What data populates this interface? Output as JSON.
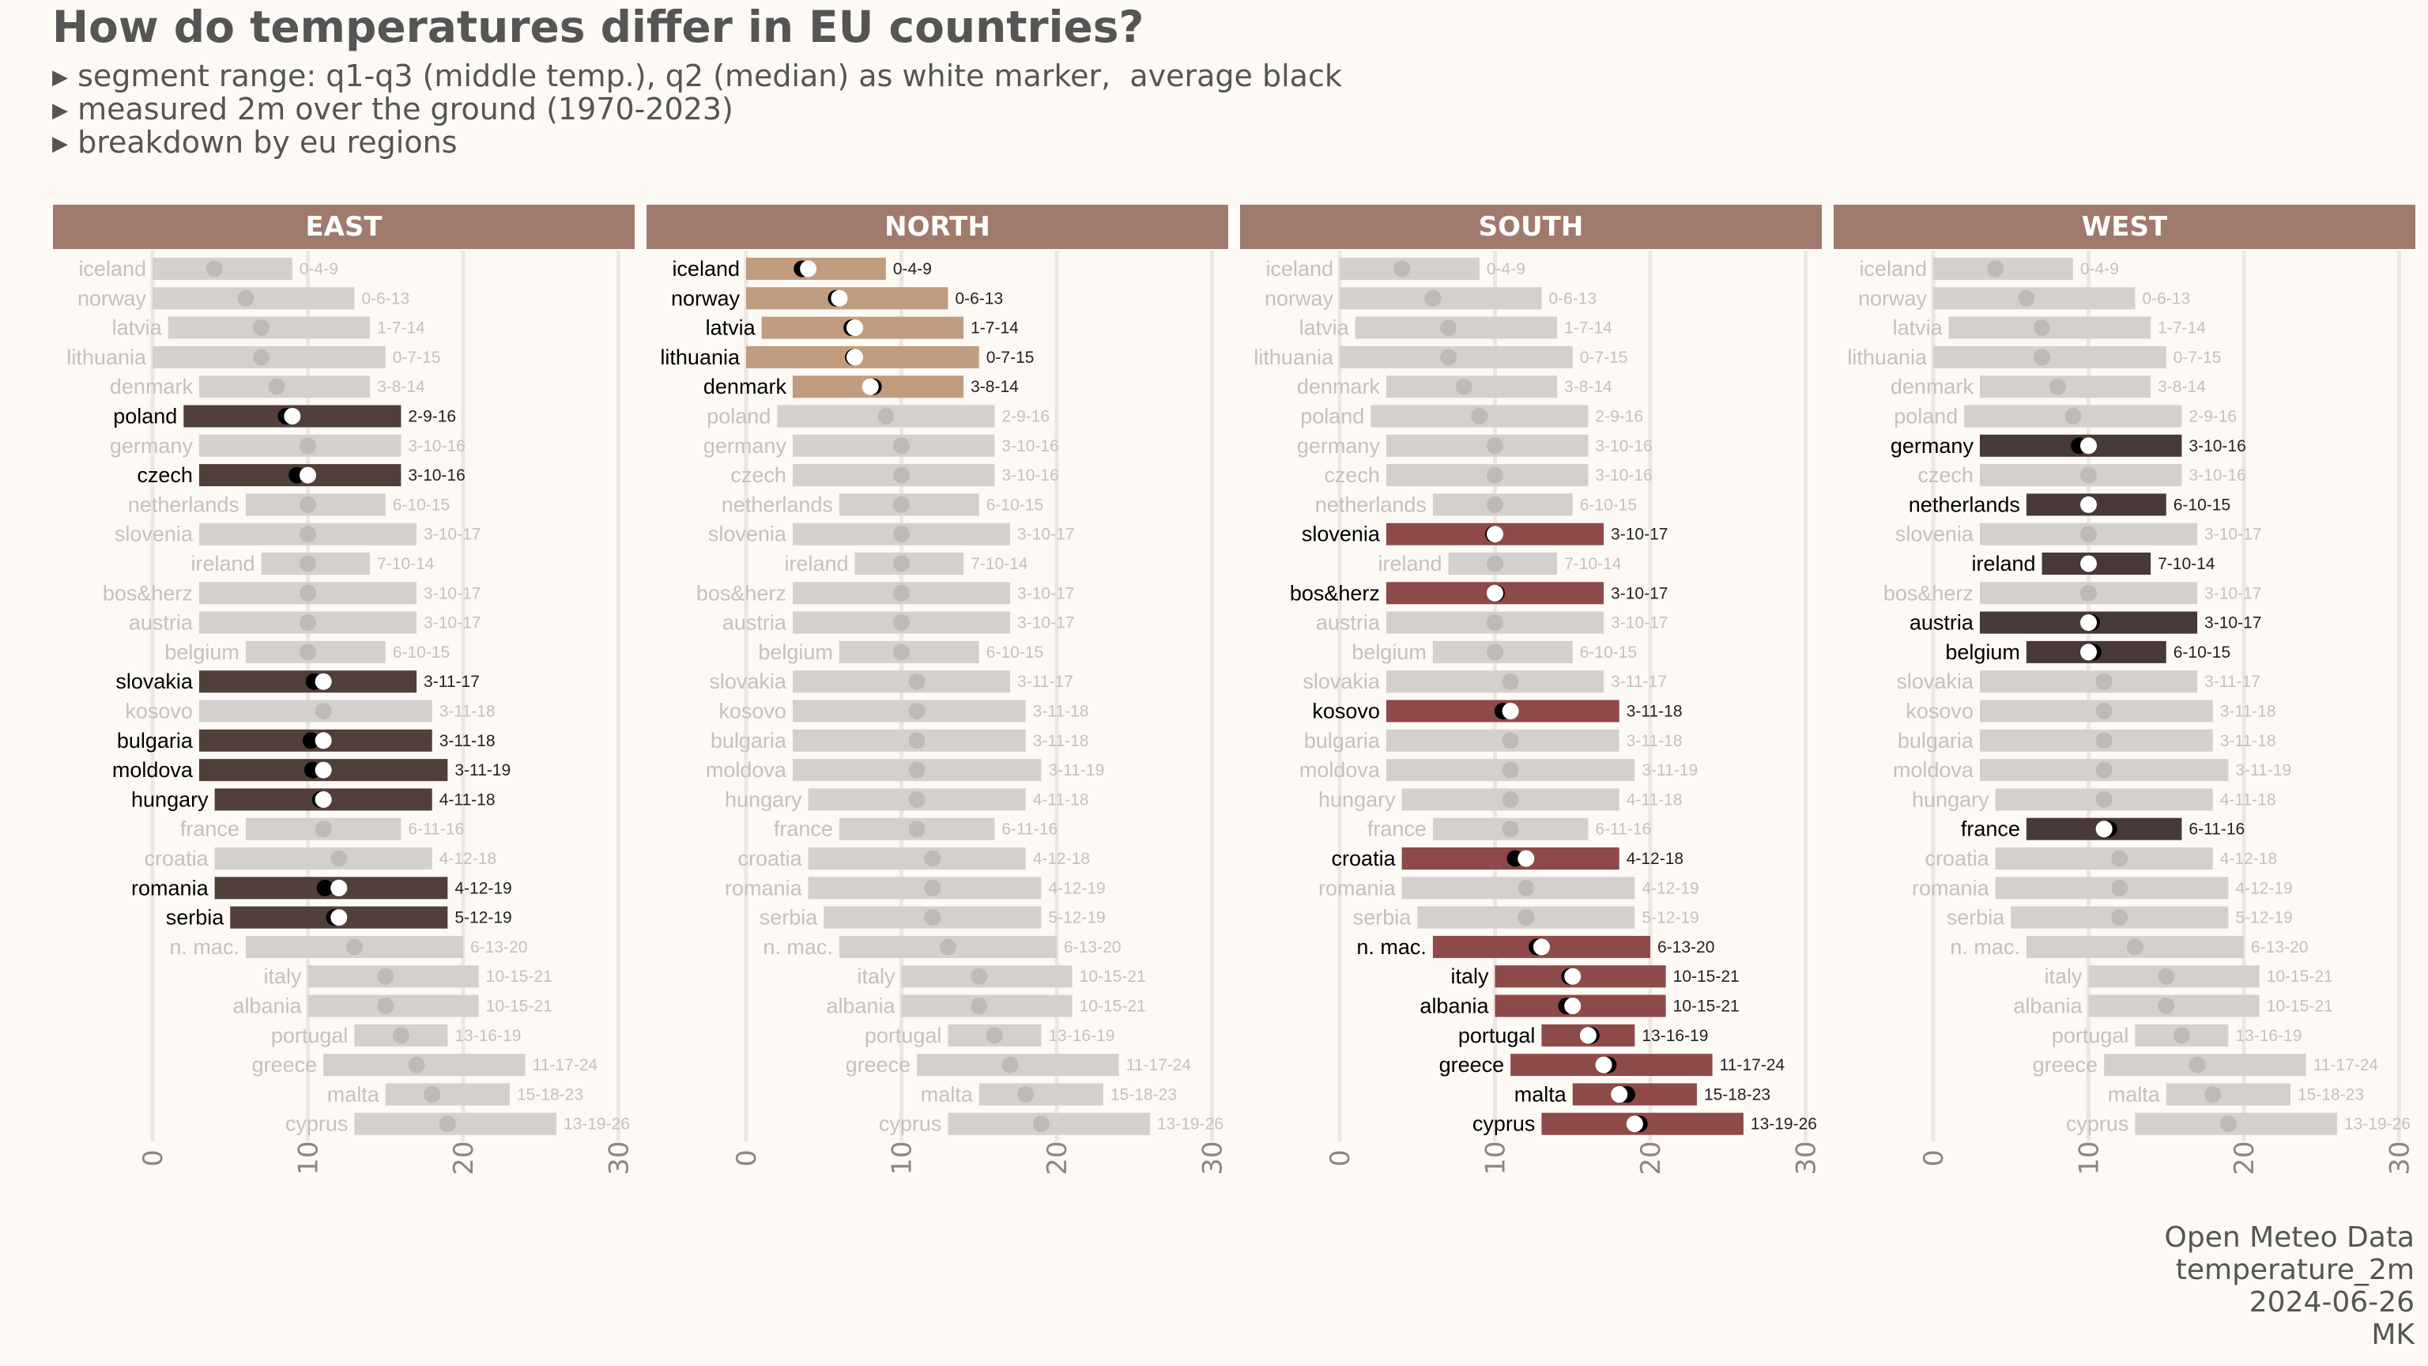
{
  "title": "How do temperatures differ in EU countries?",
  "subtitle": [
    "segment range: q1-q3 (middle temp.), q2 (median) as white marker,  average black",
    "measured 2m over the ground (1970-2023)",
    "breakdown by eu regions"
  ],
  "caption": [
    "Open Meteo Data",
    "temperature_2m",
    "2024-06-26",
    "MK"
  ],
  "colors": {
    "background": "#fdf9f5",
    "strip": "#a07a6c",
    "strip_text": "#ffffff",
    "inactive_bar": "#d3d0cd",
    "inactive_text": "#c4c1be",
    "grid": "#ede7e1",
    "east": "#513f3a",
    "north": "#c29c7f",
    "south": "#8d4a48",
    "west": "#463937"
  },
  "chart_data": {
    "type": "bar",
    "orientation": "horizontal",
    "facets": [
      "EAST",
      "NORTH",
      "SOUTH",
      "WEST"
    ],
    "x_ticks": [
      0,
      10,
      20,
      30
    ],
    "xlim": [
      0,
      30
    ],
    "countries": [
      {
        "name": "iceland",
        "q1": 0,
        "median": 4,
        "q3": 9,
        "mean": 3.6,
        "label": "0-4-9",
        "region": "NORTH"
      },
      {
        "name": "norway",
        "q1": 0,
        "median": 6,
        "q3": 13,
        "mean": 5.8,
        "label": "0-6-13",
        "region": "NORTH"
      },
      {
        "name": "latvia",
        "q1": 1,
        "median": 7,
        "q3": 14,
        "mean": 6.8,
        "label": "1-7-14",
        "region": "NORTH"
      },
      {
        "name": "lithuania",
        "q1": 0,
        "median": 7,
        "q3": 15,
        "mean": 6.9,
        "label": "0-7-15",
        "region": "NORTH"
      },
      {
        "name": "denmark",
        "q1": 3,
        "median": 8,
        "q3": 14,
        "mean": 8.2,
        "label": "3-8-14",
        "region": "NORTH"
      },
      {
        "name": "poland",
        "q1": 2,
        "median": 9,
        "q3": 16,
        "mean": 8.6,
        "label": "2-9-16",
        "region": "EAST"
      },
      {
        "name": "germany",
        "q1": 3,
        "median": 10,
        "q3": 16,
        "mean": 9.4,
        "label": "3-10-16",
        "region": "WEST"
      },
      {
        "name": "czech",
        "q1": 3,
        "median": 10,
        "q3": 16,
        "mean": 9.3,
        "label": "3-10-16",
        "region": "EAST"
      },
      {
        "name": "netherlands",
        "q1": 6,
        "median": 10,
        "q3": 15,
        "mean": 10.0,
        "label": "6-10-15",
        "region": "WEST"
      },
      {
        "name": "slovenia",
        "q1": 3,
        "median": 10,
        "q3": 17,
        "mean": 9.9,
        "label": "3-10-17",
        "region": "SOUTH"
      },
      {
        "name": "ireland",
        "q1": 7,
        "median": 10,
        "q3": 14,
        "mean": 10.0,
        "label": "7-10-14",
        "region": "WEST"
      },
      {
        "name": "bos&herz",
        "q1": 3,
        "median": 10,
        "q3": 17,
        "mean": 10.1,
        "label": "3-10-17",
        "region": "SOUTH"
      },
      {
        "name": "austria",
        "q1": 3,
        "median": 10,
        "q3": 17,
        "mean": 10.2,
        "label": "3-10-17",
        "region": "WEST"
      },
      {
        "name": "belgium",
        "q1": 6,
        "median": 10,
        "q3": 15,
        "mean": 10.3,
        "label": "6-10-15",
        "region": "WEST"
      },
      {
        "name": "slovakia",
        "q1": 3,
        "median": 11,
        "q3": 17,
        "mean": 10.4,
        "label": "3-11-17",
        "region": "EAST"
      },
      {
        "name": "kosovo",
        "q1": 3,
        "median": 11,
        "q3": 18,
        "mean": 10.5,
        "label": "3-11-18",
        "region": "SOUTH"
      },
      {
        "name": "bulgaria",
        "q1": 3,
        "median": 11,
        "q3": 18,
        "mean": 10.2,
        "label": "3-11-18",
        "region": "EAST"
      },
      {
        "name": "moldova",
        "q1": 3,
        "median": 11,
        "q3": 19,
        "mean": 10.3,
        "label": "3-11-19",
        "region": "EAST"
      },
      {
        "name": "hungary",
        "q1": 4,
        "median": 11,
        "q3": 18,
        "mean": 10.8,
        "label": "4-11-18",
        "region": "EAST"
      },
      {
        "name": "france",
        "q1": 6,
        "median": 11,
        "q3": 16,
        "mean": 11.3,
        "label": "6-11-16",
        "region": "WEST"
      },
      {
        "name": "croatia",
        "q1": 4,
        "median": 12,
        "q3": 18,
        "mean": 11.3,
        "label": "4-12-18",
        "region": "SOUTH"
      },
      {
        "name": "romania",
        "q1": 4,
        "median": 12,
        "q3": 19,
        "mean": 11.1,
        "label": "4-12-19",
        "region": "EAST"
      },
      {
        "name": "serbia",
        "q1": 5,
        "median": 12,
        "q3": 19,
        "mean": 11.7,
        "label": "5-12-19",
        "region": "EAST"
      },
      {
        "name": "n. mac.",
        "q1": 6,
        "median": 13,
        "q3": 20,
        "mean": 12.7,
        "label": "6-13-20",
        "region": "SOUTH"
      },
      {
        "name": "italy",
        "q1": 10,
        "median": 15,
        "q3": 21,
        "mean": 14.8,
        "label": "10-15-21",
        "region": "SOUTH"
      },
      {
        "name": "albania",
        "q1": 10,
        "median": 15,
        "q3": 21,
        "mean": 14.6,
        "label": "10-15-21",
        "region": "SOUTH"
      },
      {
        "name": "portugal",
        "q1": 13,
        "median": 16,
        "q3": 19,
        "mean": 16.2,
        "label": "13-16-19",
        "region": "SOUTH"
      },
      {
        "name": "greece",
        "q1": 11,
        "median": 17,
        "q3": 24,
        "mean": 17.3,
        "label": "11-17-24",
        "region": "SOUTH"
      },
      {
        "name": "malta",
        "q1": 15,
        "median": 18,
        "q3": 23,
        "mean": 18.5,
        "label": "15-18-23",
        "region": "SOUTH"
      },
      {
        "name": "cyprus",
        "q1": 13,
        "median": 19,
        "q3": 26,
        "mean": 19.3,
        "label": "13-19-26",
        "region": "SOUTH"
      }
    ]
  }
}
